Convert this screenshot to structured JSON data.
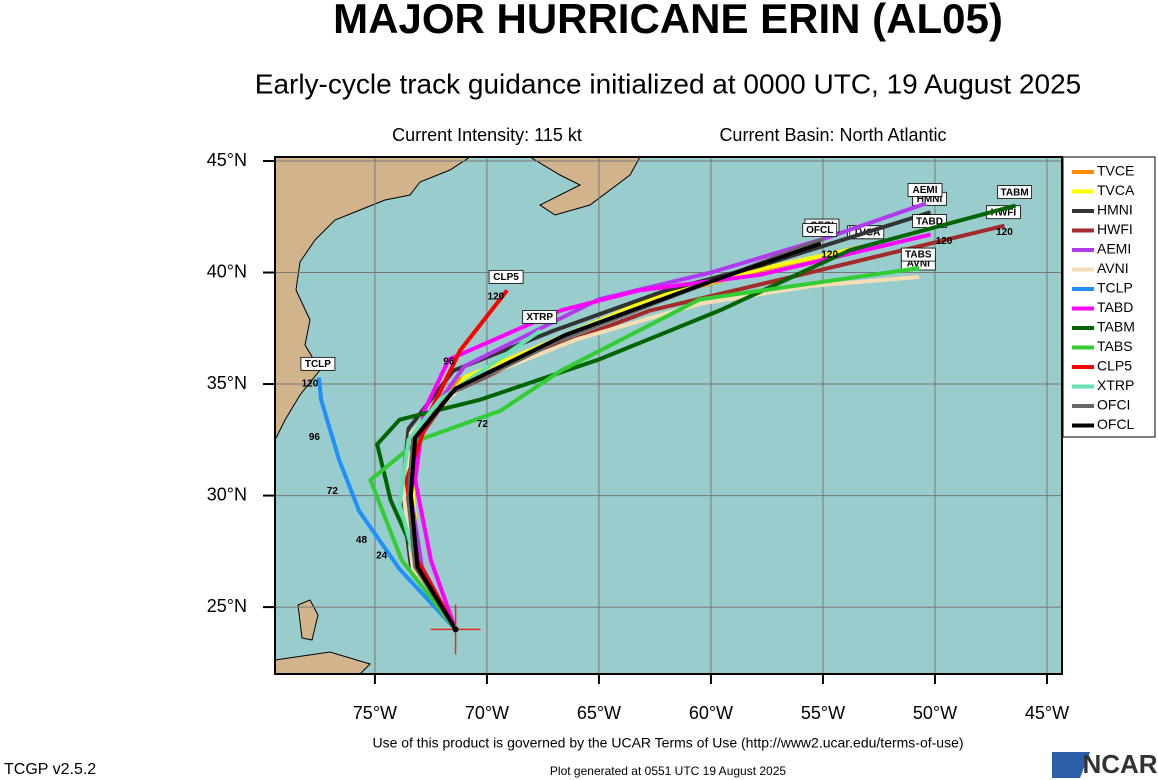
{
  "chart_data": {
    "type": "track-map",
    "title": "MAJOR HURRICANE ERIN (AL05)",
    "subtitle": "Early-cycle track guidance initialized at 0000 UTC, 19 August 2025",
    "intensity": "Current Intensity: 115 kt",
    "basin": "Current Basin: North Atlantic",
    "footer": "Use of this product is governed by the UCAR Terms of Use (http://www2.ucar.edu/terms-of-use)",
    "version": "TCGP v2.5.2",
    "generated": "Plot generated at 0551 UTC  19 August 2025",
    "logo": "NCAR",
    "xlim": [
      -79.46,
      -44.33
    ],
    "ylim": [
      22.0,
      45.18
    ],
    "xticks": [
      {
        "value": -75,
        "label": "75°W"
      },
      {
        "value": -70,
        "label": "70°W"
      },
      {
        "value": -65,
        "label": "65°W"
      },
      {
        "value": -60,
        "label": "60°W"
      },
      {
        "value": -55,
        "label": "55°W"
      },
      {
        "value": -50,
        "label": "50°W"
      },
      {
        "value": -45,
        "label": "45°W"
      }
    ],
    "yticks": [
      {
        "value": 25,
        "label": "25°N"
      },
      {
        "value": 30,
        "label": "30°N"
      },
      {
        "value": 35,
        "label": "35°N"
      },
      {
        "value": 40,
        "label": "40°N"
      },
      {
        "value": 45,
        "label": "45°N"
      }
    ],
    "grid": true,
    "legend": "right",
    "position": {
      "x": -71.4,
      "y": 24.0,
      "color": "#e03020"
    },
    "series": [
      {
        "name": "TVCE",
        "color": "#ff8c00",
        "x": [
          -71.4,
          -73.1,
          -73.4,
          -73.2,
          -71.2,
          -67.6,
          -62.7,
          -57.8,
          -53.1
        ],
        "y": [
          24.0,
          26.7,
          29.8,
          32.5,
          35.2,
          36.7,
          38.8,
          40.1,
          41.2
        ]
      },
      {
        "name": "TVCA",
        "color": "#ffff00",
        "x": [
          -71.4,
          -73.0,
          -73.3,
          -73.1,
          -71.0,
          -67.4,
          -62.5,
          -57.6,
          -53.0
        ],
        "y": [
          24.0,
          26.8,
          29.9,
          32.6,
          35.3,
          36.8,
          38.9,
          40.2,
          41.2
        ]
      },
      {
        "name": "HMNI",
        "color": "#333333",
        "x": [
          -71.4,
          -73.4,
          -73.8,
          -73.5,
          -71.5,
          -67.0,
          -62.0,
          -57.8,
          -50.2
        ],
        "y": [
          24.0,
          26.9,
          30.0,
          33.0,
          35.6,
          37.4,
          39.2,
          40.3,
          42.7
        ]
      },
      {
        "name": "HWFI",
        "color": "#a52a2a",
        "x": [
          -71.4,
          -73.2,
          -73.6,
          -73.3,
          -71.6,
          -67.5,
          -62.7,
          -56.0,
          -46.9
        ],
        "y": [
          24.0,
          26.6,
          29.7,
          32.2,
          34.6,
          36.5,
          38.3,
          39.9,
          42.1
        ]
      },
      {
        "name": "AEMI",
        "color": "#b23aee",
        "x": [
          -71.4,
          -72.9,
          -73.4,
          -73.0,
          -71.0,
          -65.0,
          -60.0,
          -55.0,
          -50.4
        ],
        "y": [
          24.0,
          26.8,
          30.0,
          33.0,
          35.8,
          38.8,
          40.0,
          41.5,
          43.1
        ]
      },
      {
        "name": "AVNI",
        "color": "#f5deb3",
        "x": [
          -71.4,
          -73.3,
          -73.7,
          -73.4,
          -71.0,
          -66.0,
          -60.5,
          -55.5,
          -50.7
        ],
        "y": [
          24.0,
          26.7,
          29.9,
          32.8,
          35.0,
          37.0,
          38.6,
          39.4,
          39.8
        ]
      },
      {
        "name": "TCLP",
        "color": "#1e90ff",
        "x": [
          -71.4,
          -73.9,
          -75.7,
          -76.6,
          -77.4,
          -77.5
        ],
        "y": [
          24.0,
          26.7,
          29.3,
          31.6,
          34.3,
          35.3
        ]
      },
      {
        "name": "TABD",
        "color": "#ff00ff",
        "x": [
          -71.4,
          -72.5,
          -73.2,
          -72.8,
          -71.7,
          -66.7,
          -63.2,
          -57.8,
          -50.2
        ],
        "y": [
          24.0,
          27.1,
          30.7,
          33.8,
          36.1,
          38.3,
          39.2,
          39.9,
          41.7
        ]
      },
      {
        "name": "TABM",
        "color": "#006400",
        "x": [
          -71.4,
          -73.1,
          -74.3,
          -74.9,
          -73.9,
          -70.3,
          -65.0,
          -59.6,
          -53.8,
          -46.4
        ],
        "y": [
          24.0,
          27.1,
          29.8,
          32.3,
          33.4,
          34.3,
          36.1,
          38.3,
          41.0,
          43.0
        ]
      },
      {
        "name": "TABS",
        "color": "#32cd32",
        "x": [
          -71.4,
          -73.8,
          -75.2,
          -73.0,
          -69.4,
          -66.7,
          -60.5,
          -50.7
        ],
        "y": [
          24.0,
          27.1,
          30.7,
          32.5,
          33.8,
          35.6,
          38.8,
          40.2
        ]
      },
      {
        "name": "CLP5",
        "color": "#ff0000",
        "x": [
          -71.4,
          -73.1,
          -73.6,
          -72.5,
          -71.2,
          -69.1
        ],
        "y": [
          24.0,
          27.1,
          30.7,
          33.8,
          36.5,
          39.2
        ]
      },
      {
        "name": "XTRP",
        "color": "#66e0b0",
        "x": [
          -71.4,
          -73.1,
          -73.9,
          -73.5,
          -72.1,
          -67.6
        ],
        "y": [
          24.0,
          26.7,
          29.6,
          32.5,
          34.3,
          37.4
        ]
      },
      {
        "name": "OFCI",
        "color": "#666666",
        "x": [
          -71.4,
          -73.2,
          -73.5,
          -73.3,
          -71.6,
          -66.7,
          -60.5,
          -55.0
        ],
        "y": [
          24.0,
          26.8,
          29.9,
          32.5,
          34.6,
          37.0,
          39.4,
          41.5
        ]
      },
      {
        "name": "OFCL",
        "color": "#000000",
        "x": [
          -71.4,
          -73.1,
          -73.4,
          -73.2,
          -71.4,
          -66.5,
          -60.3,
          -55.1
        ],
        "y": [
          24.0,
          26.8,
          30.0,
          32.6,
          34.8,
          37.2,
          39.5,
          41.3
        ]
      }
    ],
    "annotations": [
      {
        "text": "120",
        "x": -77.9,
        "y": 35.0
      },
      {
        "text": "96",
        "x": -77.7,
        "y": 32.6
      },
      {
        "text": "72",
        "x": -76.9,
        "y": 30.2
      },
      {
        "text": "48",
        "x": -75.6,
        "y": 28.0
      },
      {
        "text": "24",
        "x": -74.7,
        "y": 27.3
      },
      {
        "text": "72",
        "x": -70.2,
        "y": 33.2
      },
      {
        "text": "96",
        "x": -71.7,
        "y": 36.0
      },
      {
        "text": "120",
        "x": -69.6,
        "y": 38.9
      },
      {
        "text": "120",
        "x": -54.7,
        "y": 40.8
      },
      {
        "text": "120",
        "x": -49.6,
        "y": 41.4
      },
      {
        "text": "120",
        "x": -46.9,
        "y": 41.8
      }
    ]
  }
}
